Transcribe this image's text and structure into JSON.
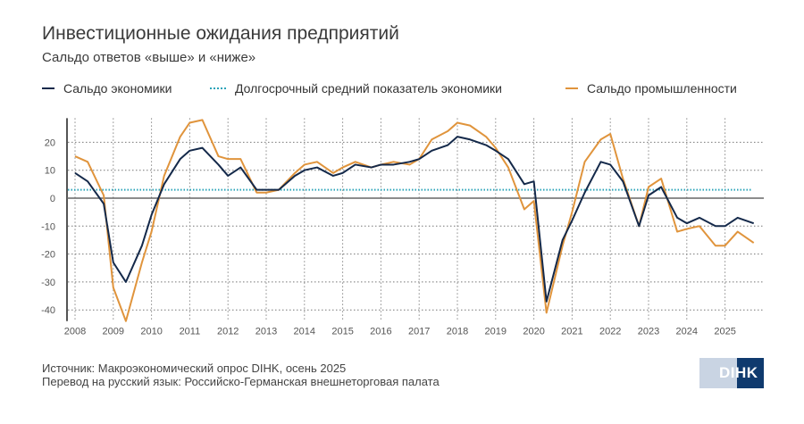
{
  "chart_data": {
    "type": "line",
    "title": "Инвестиционные ожидания предприятий",
    "subtitle": "Сальдо ответов «выше» и «ниже»",
    "xlabel": "",
    "ylabel": "",
    "ylim": [
      -44,
      28
    ],
    "yticks": [
      20,
      10,
      0,
      -10,
      -20,
      -30,
      -40
    ],
    "xticks": [
      "2008",
      "2009",
      "2010",
      "2011",
      "2012",
      "2013",
      "2014",
      "2015",
      "2016",
      "2017",
      "2018",
      "2019",
      "2020",
      "2021",
      "2022",
      "2023",
      "2024",
      "2025"
    ],
    "x": [
      2008.0,
      2008.33,
      2008.75,
      2009.0,
      2009.33,
      2009.75,
      2010.0,
      2010.33,
      2010.75,
      2011.0,
      2011.33,
      2011.75,
      2012.0,
      2012.33,
      2012.75,
      2013.0,
      2013.33,
      2013.75,
      2014.0,
      2014.33,
      2014.75,
      2015.0,
      2015.33,
      2015.75,
      2016.0,
      2016.33,
      2016.75,
      2017.0,
      2017.33,
      2017.75,
      2018.0,
      2018.33,
      2018.75,
      2019.0,
      2019.33,
      2019.75,
      2020.0,
      2020.33,
      2020.75,
      2021.0,
      2021.33,
      2021.75,
      2022.0,
      2022.33,
      2022.75,
      2023.0,
      2023.33,
      2023.75,
      2024.0,
      2024.33,
      2024.75,
      2025.0,
      2025.33,
      2025.75
    ],
    "series": [
      {
        "name": "Сальдо экономики",
        "color": "#14294a",
        "values": [
          9,
          6,
          -2,
          -23,
          -30,
          -17,
          -6,
          5,
          14,
          17,
          18,
          12,
          8,
          11,
          3,
          3,
          3,
          8,
          10,
          11,
          8,
          9,
          12,
          11,
          12,
          12,
          13,
          14,
          17,
          19,
          22,
          21,
          19,
          17,
          14,
          5,
          6,
          -37,
          -15,
          -8,
          2,
          13,
          12,
          6,
          -10,
          1,
          4,
          -7,
          -9,
          -7,
          -10,
          -10,
          -7,
          -9
        ]
      },
      {
        "name": "Долгосрочный средний показатель экономики",
        "color": "#2aa3b8",
        "constant": 3
      },
      {
        "name": "Сальдо промышленности",
        "color": "#e0943c",
        "values": [
          15,
          13,
          1,
          -32,
          -44,
          -23,
          -12,
          8,
          22,
          27,
          28,
          15,
          14,
          14,
          2,
          2,
          3,
          9,
          12,
          13,
          9,
          11,
          13,
          11,
          12,
          13,
          12,
          14,
          21,
          24,
          27,
          26,
          22,
          18,
          11,
          -4,
          -1,
          -41,
          -17,
          -5,
          13,
          21,
          23,
          7,
          -10,
          4,
          7,
          -12,
          -11,
          -10,
          -17,
          -17,
          -12,
          -16
        ]
      }
    ],
    "legend_position": "top"
  },
  "footer": {
    "source": "Источник: Макроэкономический опрос DIHK, осень 2025",
    "translation": "Перевод на русский язык: Российско-Германская внешнеторговая палата",
    "logo": "DIHK"
  }
}
